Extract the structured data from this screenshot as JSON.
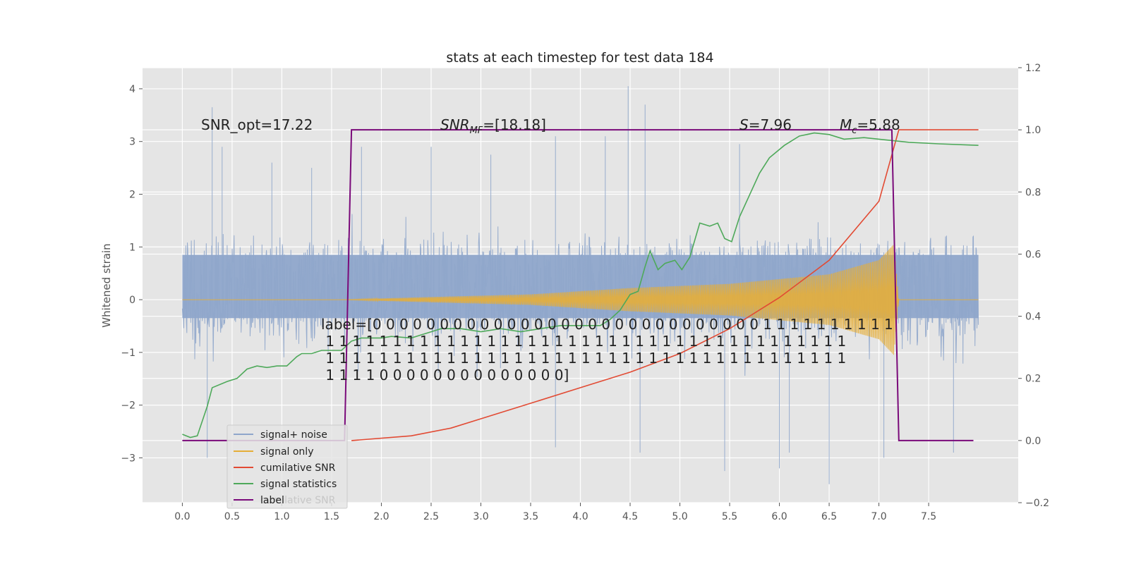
{
  "chart_data": {
    "type": "line",
    "title": "stats at each timestep for test data 184",
    "ylabel": "Whitened strain",
    "xlabel": "",
    "grid": true,
    "legend_position": "lower-left",
    "xlim": [
      -0.4,
      8.4
    ],
    "ylim": [
      -3.85,
      4.4
    ],
    "y2lim": [
      -0.2,
      1.2
    ],
    "x_ticks": [
      "0.0",
      "0.5",
      "1.0",
      "1.5",
      "2.0",
      "2.5",
      "3.0",
      "3.5",
      "4.0",
      "4.5",
      "5.0",
      "5.5",
      "6.0",
      "6.5",
      "7.0",
      "7.5"
    ],
    "y_ticks": [
      "−3",
      "−2",
      "−1",
      "0",
      "1",
      "2",
      "3",
      "4"
    ],
    "y2_ticks": [
      "−0.2",
      "0.0",
      "0.2",
      "0.4",
      "0.6",
      "0.8",
      "1.0",
      "1.2"
    ],
    "annotations": {
      "snr_opt": "SNR_opt=17.22",
      "snr_mf": "SNR_MF=[18.18]",
      "snr_mf_parts": [
        "SNR",
        "MF",
        "=[18.18]"
      ],
      "s_stat": "S=7.96",
      "s_parts": [
        "S",
        "=7.96"
      ],
      "mc": "Mc=5.88",
      "mc_parts": [
        "M",
        "c",
        "=5.88"
      ],
      "label_lines": [
        "label=[0 0 0 0 0 0 0 0 0 0 0 0 0 0 0 0 0 0 0 0 0 0 0 0 0 0 0 0 0 1 1 1 1 1 1 1 1 1 1",
        " 1 1 1 1 1 1 1 1 1 1 1 1 1 1 1 1 1 1 1 1 1 1 1 1 1 1 1 1 1 1 1 1 1 1 1 1 1 1 1",
        " 1 1 1 1 1 1 1 1 1 1 1 1 1 1 1 1 1 1 1 1 1 1 1 1 1 1 1 1 1 1 1 1 1 1 1 1 1 1 1",
        " 1 1 1 1 0 0 0 0 0 0 0 0 0 0 0 0 0 0]"
      ]
    },
    "legend_hidden_text": "cumilative SNR",
    "series": [
      {
        "name": "signal+ noise",
        "color": "#8fa6cb",
        "axis": "left",
        "x_range": [
          0.0,
          8.0
        ],
        "core_band": [
          -0.35,
          0.85
        ],
        "typical_max": 2.6,
        "typical_min": -2.7,
        "spikes": [
          [
            0.3,
            3.65
          ],
          [
            0.4,
            2.9
          ],
          [
            0.9,
            2.6
          ],
          [
            1.3,
            2.5
          ],
          [
            1.8,
            2.9
          ],
          [
            2.5,
            2.9
          ],
          [
            3.1,
            2.75
          ],
          [
            3.75,
            3.1
          ],
          [
            4.25,
            3.1
          ],
          [
            4.48,
            4.05
          ],
          [
            4.65,
            3.7
          ],
          [
            5.6,
            2.95
          ],
          [
            5.45,
            -3.25
          ],
          [
            6.5,
            -3.5
          ],
          [
            6.0,
            -3.2
          ],
          [
            4.6,
            -2.9
          ],
          [
            0.25,
            -3.0
          ],
          [
            7.05,
            -3.0
          ],
          [
            6.1,
            -2.9
          ],
          [
            3.75,
            -2.8
          ],
          [
            7.75,
            -2.9
          ]
        ]
      },
      {
        "name": "signal only",
        "color": "#e5ae38",
        "axis": "left",
        "envelope": [
          [
            0.0,
            0.0
          ],
          [
            1.6,
            0.0
          ],
          [
            2.5,
            0.05
          ],
          [
            3.5,
            0.1
          ],
          [
            4.5,
            0.22
          ],
          [
            5.5,
            0.3
          ],
          [
            6.5,
            0.48
          ],
          [
            7.0,
            0.75
          ],
          [
            7.15,
            1.05
          ],
          [
            7.2,
            0.0
          ],
          [
            8.0,
            0.0
          ]
        ]
      },
      {
        "name": "cumilative SNR",
        "color": "#e24a33",
        "axis": "right",
        "points": [
          [
            1.7,
            0.0
          ],
          [
            2.3,
            0.015
          ],
          [
            2.7,
            0.04
          ],
          [
            3.0,
            0.07
          ],
          [
            3.5,
            0.12
          ],
          [
            4.0,
            0.17
          ],
          [
            4.5,
            0.22
          ],
          [
            5.0,
            0.28
          ],
          [
            5.5,
            0.36
          ],
          [
            6.0,
            0.46
          ],
          [
            6.5,
            0.58
          ],
          [
            7.0,
            0.77
          ],
          [
            7.2,
            1.0
          ],
          [
            8.0,
            1.0
          ]
        ]
      },
      {
        "name": "signal statistics",
        "color": "#4ea95a",
        "axis": "right",
        "points": [
          [
            0.0,
            0.02
          ],
          [
            0.08,
            0.01
          ],
          [
            0.15,
            0.015
          ],
          [
            0.25,
            0.11
          ],
          [
            0.3,
            0.17
          ],
          [
            0.45,
            0.19
          ],
          [
            0.55,
            0.2
          ],
          [
            0.65,
            0.23
          ],
          [
            0.75,
            0.24
          ],
          [
            0.85,
            0.235
          ],
          [
            0.95,
            0.24
          ],
          [
            1.05,
            0.24
          ],
          [
            1.15,
            0.27
          ],
          [
            1.2,
            0.28
          ],
          [
            1.3,
            0.28
          ],
          [
            1.4,
            0.29
          ],
          [
            1.5,
            0.29
          ],
          [
            1.6,
            0.29
          ],
          [
            1.7,
            0.32
          ],
          [
            1.8,
            0.33
          ],
          [
            2.0,
            0.33
          ],
          [
            2.1,
            0.335
          ],
          [
            2.3,
            0.33
          ],
          [
            2.5,
            0.35
          ],
          [
            2.6,
            0.36
          ],
          [
            2.8,
            0.36
          ],
          [
            3.0,
            0.35
          ],
          [
            3.2,
            0.36
          ],
          [
            3.4,
            0.35
          ],
          [
            3.6,
            0.36
          ],
          [
            3.8,
            0.37
          ],
          [
            4.0,
            0.37
          ],
          [
            4.2,
            0.37
          ],
          [
            4.3,
            0.39
          ],
          [
            4.4,
            0.42
          ],
          [
            4.5,
            0.47
          ],
          [
            4.58,
            0.48
          ],
          [
            4.65,
            0.56
          ],
          [
            4.7,
            0.61
          ],
          [
            4.78,
            0.55
          ],
          [
            4.85,
            0.57
          ],
          [
            4.95,
            0.58
          ],
          [
            5.02,
            0.55
          ],
          [
            5.1,
            0.59
          ],
          [
            5.2,
            0.7
          ],
          [
            5.3,
            0.69
          ],
          [
            5.38,
            0.7
          ],
          [
            5.45,
            0.65
          ],
          [
            5.52,
            0.64
          ],
          [
            5.6,
            0.72
          ],
          [
            5.7,
            0.79
          ],
          [
            5.8,
            0.86
          ],
          [
            5.9,
            0.91
          ],
          [
            6.05,
            0.95
          ],
          [
            6.2,
            0.98
          ],
          [
            6.35,
            0.99
          ],
          [
            6.5,
            0.985
          ],
          [
            6.65,
            0.97
          ],
          [
            6.85,
            0.975
          ],
          [
            7.0,
            0.97
          ],
          [
            7.3,
            0.96
          ],
          [
            7.6,
            0.955
          ],
          [
            8.0,
            0.95
          ]
        ]
      },
      {
        "name": "label",
        "color": "#7a0a7a",
        "axis": "right",
        "points": [
          [
            0.0,
            0.0
          ],
          [
            1.63,
            0.0
          ],
          [
            1.7,
            1.0
          ],
          [
            7.13,
            1.0
          ],
          [
            7.2,
            0.0
          ],
          [
            7.95,
            0.0
          ]
        ]
      }
    ]
  }
}
